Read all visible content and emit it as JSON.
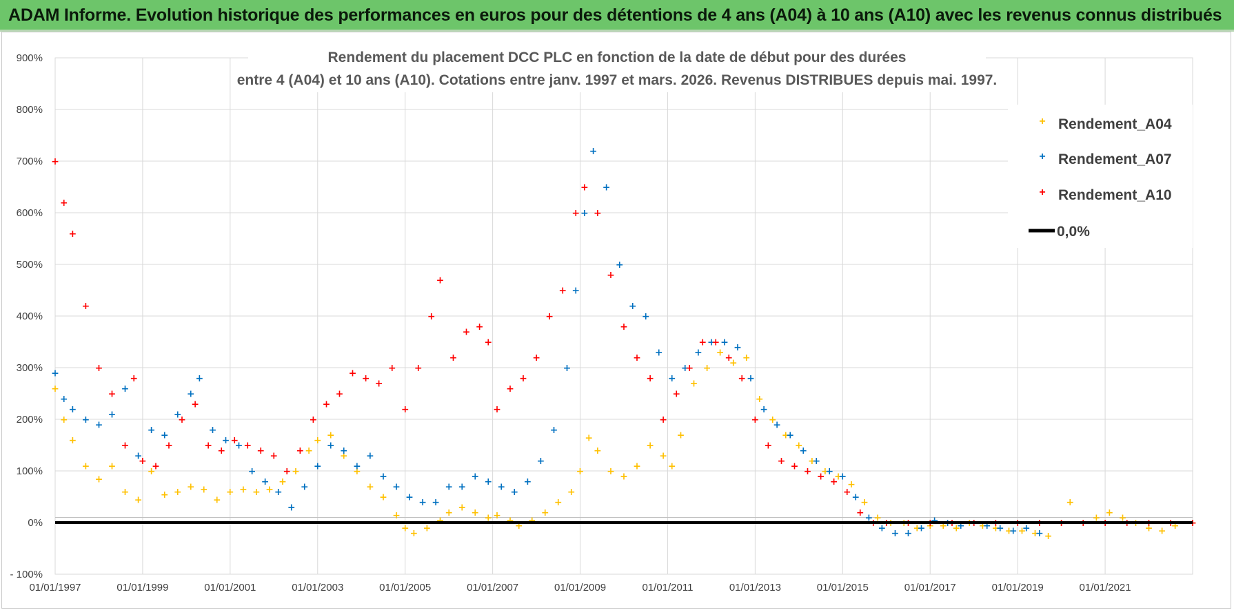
{
  "banner": {
    "title": "ADAM Informe. Evolution historique des performances en euros pour des détentions de 4 ans (A04) à 10 ans (A10) avec les revenus connus distribués"
  },
  "colors": {
    "A04": "#ffc000",
    "A07": "#0070c0",
    "A10": "#ff0000",
    "zero": "#000000",
    "grid": "#d9d9d9",
    "banner": "#6dc56a"
  },
  "chart_data": {
    "type": "scatter",
    "title_line1": "Rendement du placement DCC PLC en fonction de la date de début pour des durées",
    "title_line2": "entre 4 (A04) et 10 ans (A10).  Cotations entre janv. 1997 et mars. 2026.  Revenus DISTRIBUES depuis mai. 1997.",
    "xlabel": "",
    "ylabel": "",
    "xlim": [
      1997.0,
      2023.0
    ],
    "ylim": [
      -100,
      900
    ],
    "y_ticks": [
      -100,
      0,
      100,
      200,
      300,
      400,
      500,
      600,
      700,
      800,
      900
    ],
    "y_tick_labels": [
      "- 100%",
      "0%",
      "100%",
      "200%",
      "300%",
      "400%",
      "500%",
      "600%",
      "700%",
      "800%",
      "900%"
    ],
    "x_ticks": [
      1997,
      1999,
      2001,
      2003,
      2005,
      2007,
      2009,
      2011,
      2013,
      2015,
      2017,
      2019,
      2021
    ],
    "x_tick_labels": [
      "01/01/1997",
      "01/01/1999",
      "01/01/2001",
      "01/01/2003",
      "01/01/2005",
      "01/01/2007",
      "01/01/2009",
      "01/01/2011",
      "01/01/2013",
      "01/01/2015",
      "01/01/2017",
      "01/01/2019",
      "01/01/2021"
    ],
    "grid": true,
    "legend_position": "top-right",
    "series": [
      {
        "name": "Rendement_A04",
        "key": "A04",
        "x": [
          1997.0,
          1997.2,
          1997.4,
          1997.7,
          1998.0,
          1998.3,
          1998.6,
          1998.9,
          1999.2,
          1999.5,
          1999.8,
          2000.1,
          2000.4,
          2000.7,
          2001.0,
          2001.3,
          2001.6,
          2001.9,
          2002.2,
          2002.5,
          2002.8,
          2003.0,
          2003.3,
          2003.6,
          2003.9,
          2004.2,
          2004.5,
          2004.8,
          2005.0,
          2005.2,
          2005.5,
          2005.8,
          2006.0,
          2006.3,
          2006.6,
          2006.9,
          2007.1,
          2007.4,
          2007.6,
          2007.9,
          2008.2,
          2008.5,
          2008.8,
          2009.0,
          2009.2,
          2009.4,
          2009.7,
          2010.0,
          2010.3,
          2010.6,
          2010.9,
          2011.1,
          2011.3,
          2011.6,
          2011.9,
          2012.2,
          2012.5,
          2012.8,
          2013.1,
          2013.4,
          2013.7,
          2014.0,
          2014.3,
          2014.6,
          2014.9,
          2015.2,
          2015.5,
          2015.8,
          2016.1,
          2016.4,
          2016.7,
          2017.0,
          2017.3,
          2017.6,
          2017.9,
          2018.2,
          2018.5,
          2018.8,
          2019.1,
          2019.4,
          2019.7,
          2020.0,
          2020.2,
          2020.5,
          2020.8,
          2021.1,
          2021.4,
          2021.7,
          2022.0,
          2022.3,
          2022.6,
          2023.0
        ],
        "values": [
          260,
          200,
          160,
          110,
          85,
          110,
          60,
          45,
          100,
          55,
          60,
          70,
          65,
          45,
          60,
          65,
          60,
          65,
          80,
          100,
          140,
          160,
          170,
          130,
          100,
          70,
          50,
          15,
          -10,
          -20,
          -10,
          5,
          20,
          30,
          20,
          10,
          15,
          5,
          -5,
          5,
          20,
          40,
          60,
          100,
          165,
          140,
          100,
          90,
          110,
          150,
          130,
          110,
          170,
          270,
          300,
          330,
          310,
          320,
          240,
          200,
          170,
          150,
          120,
          100,
          90,
          75,
          40,
          10,
          0,
          0,
          -10,
          -5,
          -5,
          -10,
          0,
          -5,
          -10,
          -15,
          -15,
          -20,
          -25,
          0,
          40,
          0,
          10,
          20,
          10,
          0,
          -10,
          -15,
          -5,
          0
        ]
      },
      {
        "name": "Rendement_A07",
        "key": "A07",
        "x": [
          1997.0,
          1997.2,
          1997.4,
          1997.7,
          1998.0,
          1998.3,
          1998.6,
          1998.9,
          1999.2,
          1999.5,
          1999.8,
          2000.1,
          2000.3,
          2000.6,
          2000.9,
          2001.2,
          2001.5,
          2001.8,
          2002.1,
          2002.4,
          2002.7,
          2003.0,
          2003.3,
          2003.6,
          2003.9,
          2004.2,
          2004.5,
          2004.8,
          2005.1,
          2005.4,
          2005.7,
          2006.0,
          2006.3,
          2006.6,
          2006.9,
          2007.2,
          2007.5,
          2007.8,
          2008.1,
          2008.4,
          2008.7,
          2008.9,
          2009.1,
          2009.3,
          2009.6,
          2009.9,
          2010.2,
          2010.5,
          2010.8,
          2011.1,
          2011.4,
          2011.7,
          2012.0,
          2012.3,
          2012.6,
          2012.9,
          2013.2,
          2013.5,
          2013.8,
          2014.1,
          2014.4,
          2014.7,
          2015.0,
          2015.3,
          2015.6,
          2015.9,
          2016.2,
          2016.5,
          2016.8,
          2017.1,
          2017.4,
          2017.7,
          2018.0,
          2018.3,
          2018.6,
          2018.9,
          2019.2,
          2019.5
        ],
        "values": [
          290,
          240,
          220,
          200,
          190,
          210,
          260,
          130,
          180,
          170,
          210,
          250,
          280,
          180,
          160,
          150,
          100,
          80,
          60,
          30,
          70,
          110,
          150,
          140,
          110,
          130,
          90,
          70,
          50,
          40,
          40,
          70,
          70,
          90,
          80,
          70,
          60,
          80,
          120,
          180,
          300,
          450,
          600,
          720,
          650,
          500,
          420,
          400,
          330,
          280,
          300,
          330,
          350,
          350,
          340,
          280,
          220,
          190,
          170,
          140,
          120,
          100,
          90,
          50,
          10,
          -10,
          -20,
          -20,
          -10,
          5,
          0,
          -5,
          0,
          -5,
          -10,
          -15,
          -10,
          -20
        ]
      },
      {
        "name": "Rendement_A10",
        "key": "A10",
        "x": [
          1997.0,
          1997.2,
          1997.4,
          1997.7,
          1998.0,
          1998.3,
          1998.6,
          1998.8,
          1999.0,
          1999.3,
          1999.6,
          1999.9,
          2000.2,
          2000.5,
          2000.8,
          2001.1,
          2001.4,
          2001.7,
          2002.0,
          2002.3,
          2002.6,
          2002.9,
          2003.2,
          2003.5,
          2003.8,
          2004.1,
          2004.4,
          2004.7,
          2005.0,
          2005.3,
          2005.6,
          2005.8,
          2006.1,
          2006.4,
          2006.7,
          2006.9,
          2007.1,
          2007.4,
          2007.7,
          2008.0,
          2008.3,
          2008.6,
          2008.9,
          2009.1,
          2009.4,
          2009.7,
          2010.0,
          2010.3,
          2010.6,
          2010.9,
          2011.2,
          2011.5,
          2011.8,
          2012.1,
          2012.4,
          2012.7,
          2013.0,
          2013.3,
          2013.6,
          2013.9,
          2014.2,
          2014.5,
          2014.8,
          2015.1,
          2015.4,
          2015.7,
          2016.0,
          2016.5,
          2017.0,
          2017.5,
          2018.0,
          2018.5,
          2019.0,
          2019.5,
          2020.0,
          2020.5,
          2021.0,
          2021.5,
          2022.0,
          2022.5,
          2023.0
        ],
        "values": [
          700,
          620,
          560,
          420,
          300,
          250,
          150,
          280,
          120,
          110,
          150,
          200,
          230,
          150,
          140,
          160,
          150,
          140,
          130,
          100,
          140,
          200,
          230,
          250,
          290,
          280,
          270,
          300,
          220,
          300,
          400,
          470,
          320,
          370,
          380,
          350,
          220,
          260,
          280,
          320,
          400,
          450,
          600,
          650,
          600,
          480,
          380,
          320,
          280,
          200,
          250,
          300,
          350,
          350,
          320,
          280,
          200,
          150,
          120,
          110,
          100,
          90,
          80,
          60,
          20,
          0,
          0,
          0,
          0,
          0,
          0,
          0,
          0,
          0,
          0,
          0,
          0,
          0,
          0,
          0,
          0
        ]
      },
      {
        "name": "0,0%",
        "key": "zero",
        "x": [
          1997.0,
          2023.0
        ],
        "values": [
          0,
          0
        ]
      }
    ]
  }
}
